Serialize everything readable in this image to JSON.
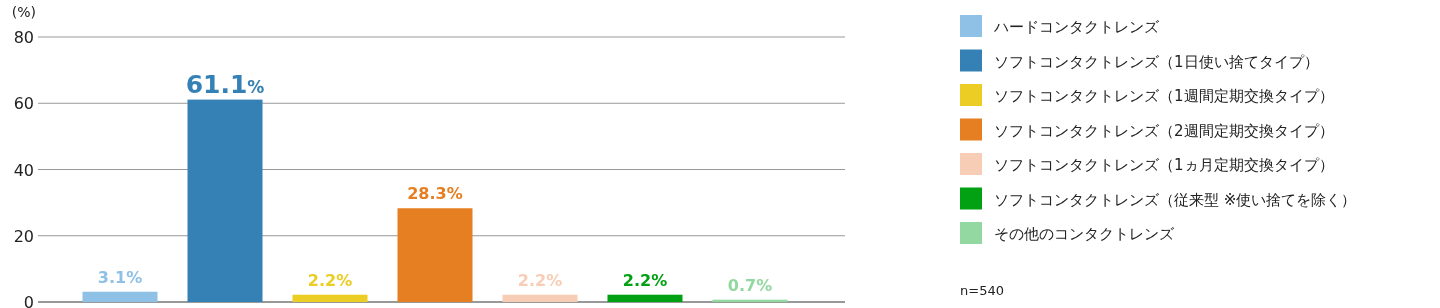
{
  "chart_data": {
    "type": "bar",
    "ylabel": "(%)",
    "categories": [
      null
    ],
    "series": [
      {
        "name": "ハードコンタクトレンズ",
        "color": "#8fc0e6",
        "values": [
          3.1
        ],
        "value_labels": [
          "3.1%"
        ]
      },
      {
        "name": "ソフトコンタクトレンズ（1日使い捨てタイプ）",
        "color": "#3580b4",
        "values": [
          61.1
        ],
        "value_labels": [
          "61.1%"
        ]
      },
      {
        "name": "ソフトコンタクトレンズ（1週間定期交換タイプ）",
        "color": "#ebcd23",
        "values": [
          2.2
        ],
        "value_labels": [
          "2.2%"
        ]
      },
      {
        "name": "ソフトコンタクトレンズ（2週間定期交換タイプ）",
        "color": "#e67e22",
        "values": [
          28.3
        ],
        "value_labels": [
          "28.3%"
        ]
      },
      {
        "name": "ソフトコンタクトレンズ（1ヵ月定期交換タイプ）",
        "color": "#f8cdb5",
        "values": [
          2.2
        ],
        "value_labels": [
          "2.2%"
        ]
      },
      {
        "name": "ソフトコンタクトレンズ（従来型 ※使い捨てを除く）",
        "color": "#02a013",
        "values": [
          2.2
        ],
        "value_labels": [
          "2.2%"
        ]
      },
      {
        "name": "その他のコンタクトレンズ",
        "color": "#92d8a0",
        "values": [
          0.7
        ],
        "value_labels": [
          "0.7%"
        ]
      }
    ],
    "ylim": [
      0,
      80
    ],
    "yticks": [
      0,
      20,
      40,
      60,
      80
    ],
    "grid": "y",
    "legend": "right",
    "tick_labels": "y",
    "annotations": [
      "n=540"
    ]
  }
}
